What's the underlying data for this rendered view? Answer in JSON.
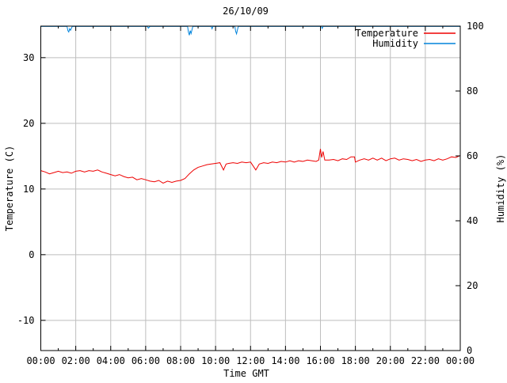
{
  "chart_data": {
    "type": "line",
    "title": "26/10/09",
    "xlabel": "Time GMT",
    "ylabel_left": "Temperature (C)",
    "ylabel_right": "Humidity (%)",
    "background_color": "#ffffff",
    "frame_color": "#000000",
    "grid_color": "#bebebe",
    "grid": true,
    "x_range": [
      0,
      24
    ],
    "x_ticks": [
      {
        "h": 0,
        "label": "00:00"
      },
      {
        "h": 2,
        "label": "02:00"
      },
      {
        "h": 4,
        "label": "04:00"
      },
      {
        "h": 6,
        "label": "06:00"
      },
      {
        "h": 8,
        "label": "08:00"
      },
      {
        "h": 10,
        "label": "10:00"
      },
      {
        "h": 12,
        "label": "12:00"
      },
      {
        "h": 14,
        "label": "14:00"
      },
      {
        "h": 16,
        "label": "16:00"
      },
      {
        "h": 18,
        "label": "18:00"
      },
      {
        "h": 20,
        "label": "20:00"
      },
      {
        "h": 22,
        "label": "22:00"
      },
      {
        "h": 24,
        "label": "00:00"
      }
    ],
    "x_minor_hours": [
      1,
      3,
      5,
      7,
      9,
      11,
      13,
      15,
      17,
      19,
      21,
      23
    ],
    "left_axis": {
      "range": [
        -14.6,
        34.8
      ],
      "ticks": [
        -10,
        0,
        10,
        20,
        30
      ]
    },
    "right_axis": {
      "range": [
        0,
        100
      ],
      "ticks": [
        0,
        20,
        40,
        60,
        80,
        100
      ]
    },
    "legend": {
      "position": "top-right-inside",
      "entries": [
        {
          "label": "Temperature",
          "color": "#ee0000"
        },
        {
          "label": "Humidity",
          "color": "#0084dc"
        }
      ]
    },
    "series": [
      {
        "name": "Temperature",
        "axis": "left",
        "color": "#ee0000",
        "points": [
          [
            0.0,
            12.8
          ],
          [
            0.25,
            12.6
          ],
          [
            0.5,
            12.3
          ],
          [
            0.75,
            12.5
          ],
          [
            1.0,
            12.7
          ],
          [
            1.25,
            12.5
          ],
          [
            1.5,
            12.6
          ],
          [
            1.75,
            12.4
          ],
          [
            2.0,
            12.7
          ],
          [
            2.25,
            12.8
          ],
          [
            2.5,
            12.6
          ],
          [
            2.75,
            12.8
          ],
          [
            3.0,
            12.7
          ],
          [
            3.25,
            12.9
          ],
          [
            3.5,
            12.6
          ],
          [
            3.75,
            12.4
          ],
          [
            4.0,
            12.2
          ],
          [
            4.25,
            12.0
          ],
          [
            4.5,
            12.2
          ],
          [
            4.75,
            11.9
          ],
          [
            5.0,
            11.7
          ],
          [
            5.25,
            11.8
          ],
          [
            5.5,
            11.4
          ],
          [
            5.75,
            11.6
          ],
          [
            6.0,
            11.4
          ],
          [
            6.25,
            11.2
          ],
          [
            6.5,
            11.1
          ],
          [
            6.75,
            11.3
          ],
          [
            7.0,
            10.9
          ],
          [
            7.25,
            11.2
          ],
          [
            7.5,
            11.0
          ],
          [
            7.75,
            11.2
          ],
          [
            8.0,
            11.3
          ],
          [
            8.25,
            11.6
          ],
          [
            8.5,
            12.3
          ],
          [
            8.75,
            12.9
          ],
          [
            9.0,
            13.3
          ],
          [
            9.25,
            13.5
          ],
          [
            9.5,
            13.7
          ],
          [
            9.75,
            13.8
          ],
          [
            10.0,
            13.9
          ],
          [
            10.25,
            14.0
          ],
          [
            10.45,
            12.9
          ],
          [
            10.6,
            13.8
          ],
          [
            10.75,
            13.9
          ],
          [
            11.0,
            14.0
          ],
          [
            11.25,
            13.9
          ],
          [
            11.5,
            14.1
          ],
          [
            11.75,
            14.0
          ],
          [
            12.0,
            14.1
          ],
          [
            12.3,
            12.9
          ],
          [
            12.5,
            13.8
          ],
          [
            12.75,
            14.0
          ],
          [
            13.0,
            13.9
          ],
          [
            13.25,
            14.1
          ],
          [
            13.5,
            14.0
          ],
          [
            13.75,
            14.2
          ],
          [
            14.0,
            14.1
          ],
          [
            14.25,
            14.3
          ],
          [
            14.5,
            14.1
          ],
          [
            14.75,
            14.3
          ],
          [
            15.0,
            14.2
          ],
          [
            15.25,
            14.4
          ],
          [
            15.5,
            14.3
          ],
          [
            15.75,
            14.2
          ],
          [
            15.9,
            14.4
          ],
          [
            16.0,
            16.1
          ],
          [
            16.07,
            14.8
          ],
          [
            16.15,
            15.7
          ],
          [
            16.25,
            14.4
          ],
          [
            16.5,
            14.4
          ],
          [
            16.75,
            14.5
          ],
          [
            17.0,
            14.3
          ],
          [
            17.25,
            14.6
          ],
          [
            17.5,
            14.5
          ],
          [
            17.75,
            14.9
          ],
          [
            17.95,
            14.9
          ],
          [
            18.0,
            14.1
          ],
          [
            18.25,
            14.4
          ],
          [
            18.5,
            14.6
          ],
          [
            18.75,
            14.4
          ],
          [
            19.0,
            14.7
          ],
          [
            19.25,
            14.4
          ],
          [
            19.5,
            14.7
          ],
          [
            19.75,
            14.3
          ],
          [
            20.0,
            14.6
          ],
          [
            20.25,
            14.7
          ],
          [
            20.5,
            14.4
          ],
          [
            20.75,
            14.6
          ],
          [
            21.0,
            14.5
          ],
          [
            21.25,
            14.3
          ],
          [
            21.5,
            14.5
          ],
          [
            21.75,
            14.2
          ],
          [
            22.0,
            14.4
          ],
          [
            22.25,
            14.5
          ],
          [
            22.5,
            14.3
          ],
          [
            22.75,
            14.6
          ],
          [
            23.0,
            14.4
          ],
          [
            23.25,
            14.6
          ],
          [
            23.5,
            14.9
          ],
          [
            23.75,
            14.8
          ],
          [
            24.0,
            15.1
          ]
        ]
      },
      {
        "name": "Humidity",
        "axis": "right",
        "color": "#0084dc",
        "points": [
          [
            0,
            99.9
          ],
          [
            1.5,
            99.9
          ],
          [
            1.55,
            98.6
          ],
          [
            1.6,
            98.2
          ],
          [
            1.65,
            99.2
          ],
          [
            1.7,
            98.7
          ],
          [
            1.8,
            99.9
          ],
          [
            6.1,
            99.9
          ],
          [
            6.15,
            99.4
          ],
          [
            6.25,
            99.9
          ],
          [
            8.4,
            99.9
          ],
          [
            8.45,
            98.1
          ],
          [
            8.5,
            97.2
          ],
          [
            8.55,
            98.6
          ],
          [
            8.6,
            97.7
          ],
          [
            8.65,
            98.8
          ],
          [
            8.7,
            99.9
          ],
          [
            9.75,
            99.9
          ],
          [
            9.8,
            99.2
          ],
          [
            9.85,
            99.9
          ],
          [
            11.1,
            99.9
          ],
          [
            11.15,
            98.4
          ],
          [
            11.2,
            97.6
          ],
          [
            11.25,
            98.8
          ],
          [
            11.3,
            99.9
          ],
          [
            16.05,
            99.9
          ],
          [
            16.1,
            99.3
          ],
          [
            16.15,
            99.9
          ],
          [
            24,
            99.9
          ]
        ]
      }
    ]
  }
}
